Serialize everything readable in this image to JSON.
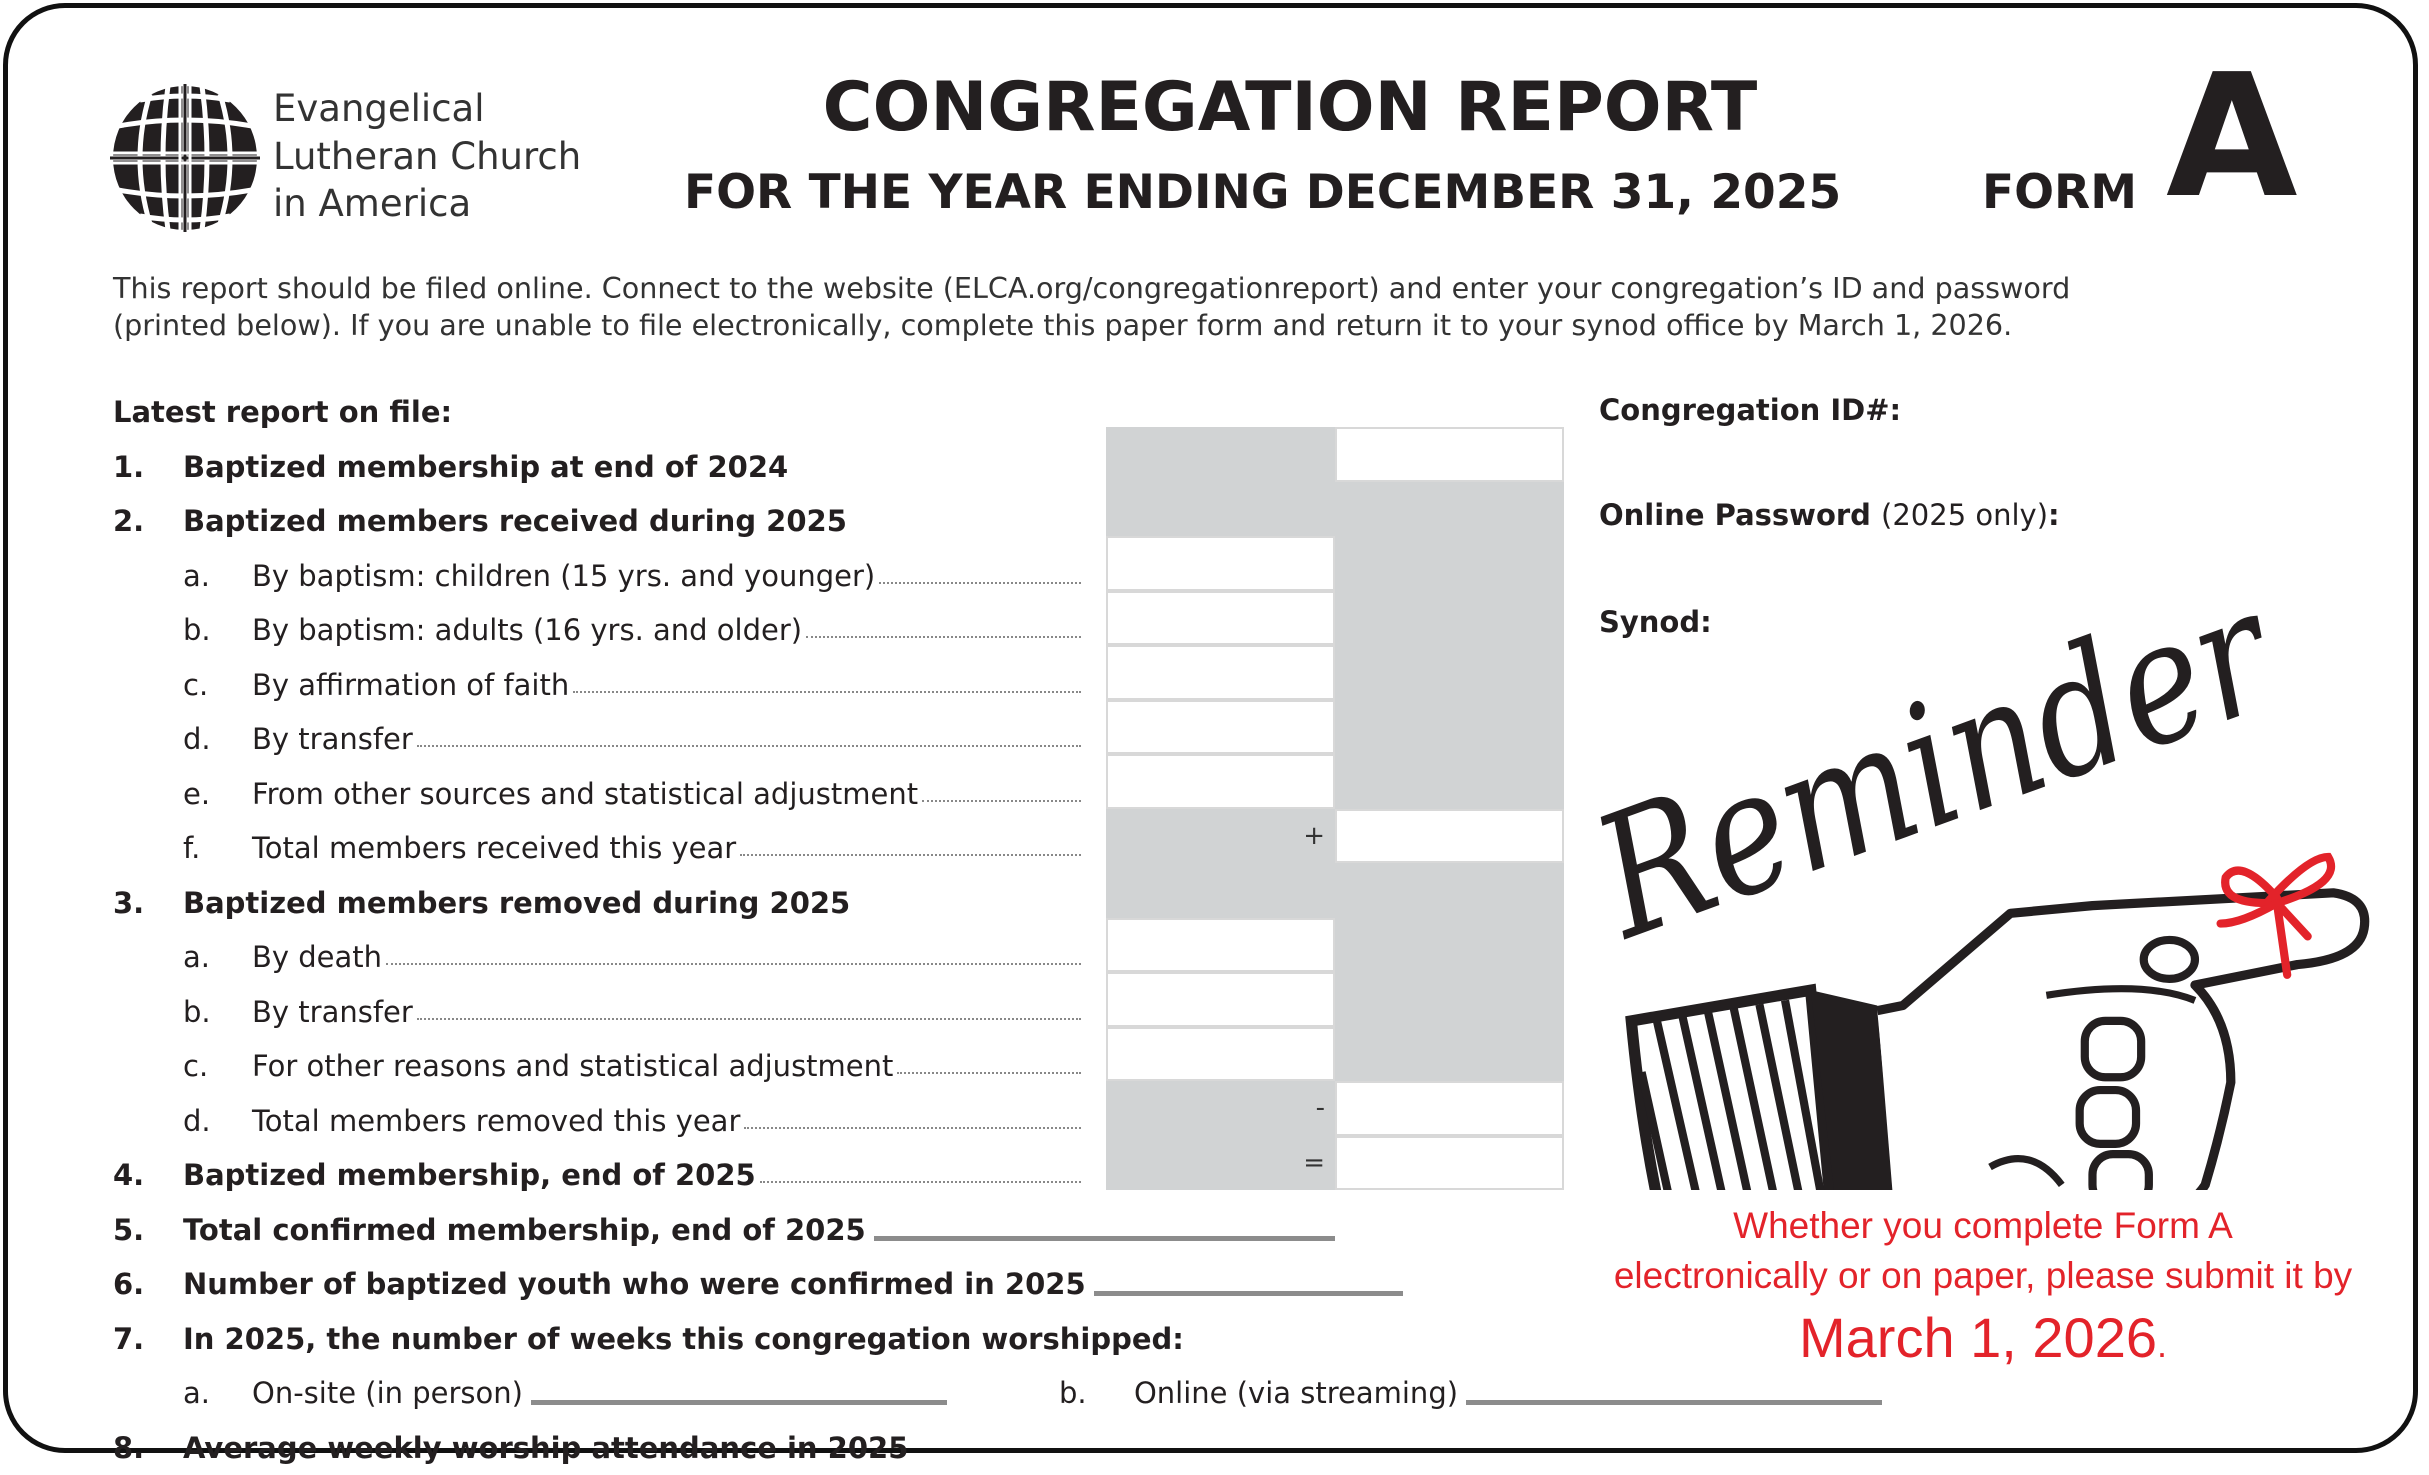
{
  "logo": {
    "lines": [
      "Evangelical",
      "Lutheran Church",
      "in America"
    ],
    "icon": "globe-cross-icon"
  },
  "header": {
    "title": "CONGREGATION REPORT",
    "subtitle": "FOR THE YEAR ENDING DECEMBER 31, 2025",
    "form_label": "FORM",
    "form_letter": "A"
  },
  "intro": {
    "line1": "This report should be filed online. Connect to the website (ELCA.org/congregationreport) and enter your congregation’s ID and password",
    "line2": "(printed below). If you are unable to file electronically, complete this paper form and return it to your synod office by March 1, 2026."
  },
  "rows": [
    {
      "type": "header",
      "num": "",
      "text": "Latest report on file:"
    },
    {
      "type": "section",
      "num": "1.",
      "text": "Baptized membership at end of 2024"
    },
    {
      "type": "section",
      "num": "2.",
      "text": "Baptized members received during 2025"
    },
    {
      "type": "sub",
      "num": "a.",
      "text": "By baptism: children (15 yrs. and younger)"
    },
    {
      "type": "sub",
      "num": "b.",
      "text": "By baptism: adults (16 yrs. and older)"
    },
    {
      "type": "sub",
      "num": "c.",
      "text": "By affirmation of faith"
    },
    {
      "type": "sub",
      "num": "d.",
      "text": "By transfer"
    },
    {
      "type": "sub",
      "num": "e.",
      "text": "From other sources and statistical adjustment"
    },
    {
      "type": "sub",
      "num": "f.",
      "text": "Total members received this year"
    },
    {
      "type": "section",
      "num": "3.",
      "text": "Baptized members removed during 2025"
    },
    {
      "type": "sub",
      "num": "a.",
      "text": "By death"
    },
    {
      "type": "sub",
      "num": "b.",
      "text": "By transfer"
    },
    {
      "type": "sub",
      "num": "c.",
      "text": "For other reasons and statistical adjustment"
    },
    {
      "type": "sub",
      "num": "d.",
      "text": "Total members removed this year"
    },
    {
      "type": "section-leader",
      "num": "4.",
      "text": "Baptized membership, end of 2025"
    },
    {
      "type": "section-line",
      "num": "5.",
      "text": "Total confirmed membership, end of 2025"
    },
    {
      "type": "section-line",
      "num": "6.",
      "text": "Number of baptized youth who were confirmed in 2025"
    },
    {
      "type": "section",
      "num": "7.",
      "text": "In 2025, the number of weeks this congregation worshipped:"
    },
    {
      "type": "split",
      "num": "a.",
      "text": "On-site (in person)",
      "num2": "b.",
      "text2": "Online (via streaming)"
    },
    {
      "type": "section",
      "num": "8.",
      "text": "Average weekly worship attendance in 2025"
    }
  ],
  "grid_symbols": {
    "received_total": "+",
    "removed_total": "-",
    "end_total": "="
  },
  "right": {
    "congregation_id_label": "Congregation ID#:",
    "password_label": "Online Password",
    "password_note": "(2025 only)",
    "password_colon": ":",
    "synod_label": "Synod:"
  },
  "reminder": {
    "script_text": "Reminder",
    "line1": "Whether you complete Form A",
    "line2": "electronically or on paper, please submit it by",
    "deadline": "March 1, 2026",
    "deadline_period": "."
  },
  "colors": {
    "accent_red": "#e3232a",
    "cell_gray": "#d1d3d4",
    "ink": "#231f20"
  }
}
